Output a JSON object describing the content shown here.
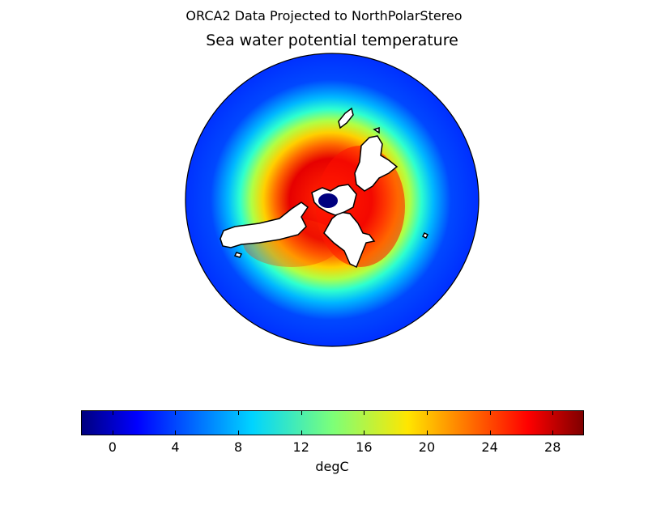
{
  "figure": {
    "suptitle": "ORCA2 Data Projected to NorthPolarStereo",
    "title": "Sea water potential temperature"
  },
  "chart_data": {
    "type": "heatmap",
    "projection": "NorthPolarStereo",
    "variable": "Sea water potential temperature",
    "units": "degC",
    "colormap": "jet",
    "vmin": -2,
    "vmax": 30,
    "colorbar": {
      "orientation": "horizontal",
      "label": "degC",
      "ticks": [
        0,
        4,
        8,
        12,
        16,
        20,
        24,
        28
      ],
      "tick_labels": [
        "0",
        "4",
        "8",
        "12",
        "16",
        "20",
        "24",
        "28"
      ]
    },
    "field_rings": [
      {
        "value": 2
      },
      {
        "value": 4
      },
      {
        "value": 7
      },
      {
        "value": 10
      },
      {
        "value": 14
      },
      {
        "value": 18
      },
      {
        "value": 22
      },
      {
        "value": 26
      },
      {
        "value": 28
      }
    ]
  }
}
